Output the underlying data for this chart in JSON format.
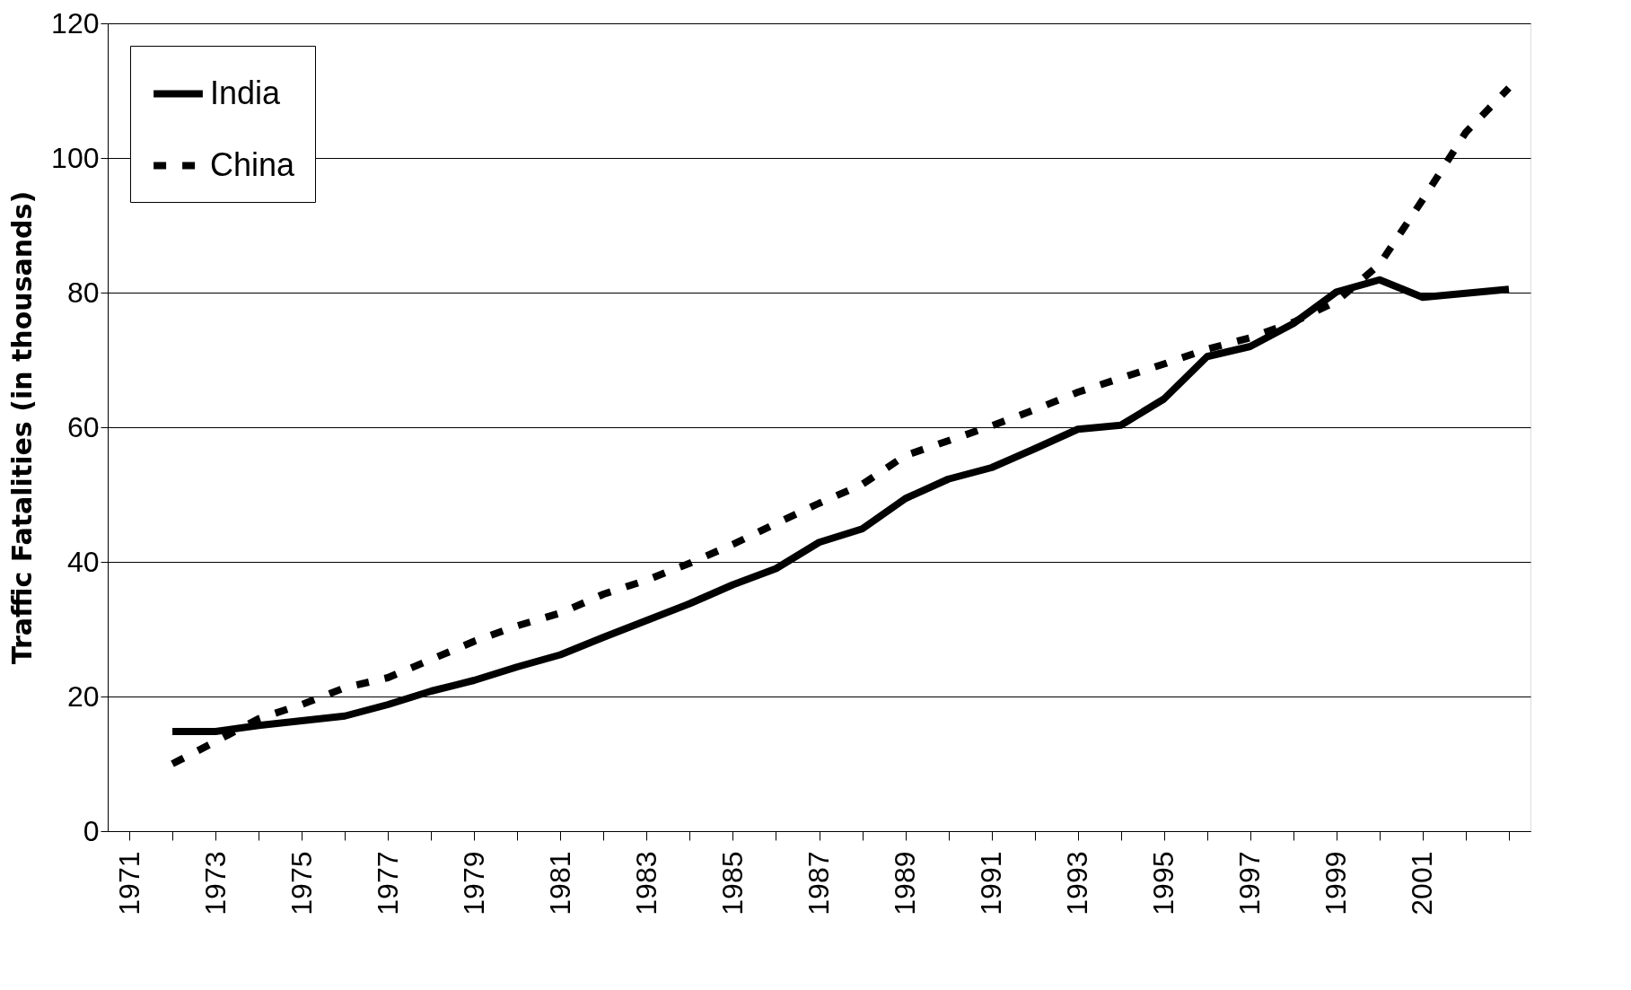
{
  "chart_data": {
    "type": "line",
    "ylabel": "Traffic Fatalities (in thousands)",
    "categories": [
      "1971",
      null,
      "1973",
      null,
      "1975",
      null,
      "1977",
      null,
      "1979",
      null,
      "1981",
      null,
      "1983",
      null,
      "1985",
      null,
      "1987",
      null,
      "1989",
      null,
      "1991",
      null,
      "1993",
      null,
      "1995",
      null,
      "1997",
      null,
      "1999",
      null,
      "2001",
      null,
      null
    ],
    "series": [
      {
        "name": "India",
        "color": "#000000",
        "line_style": "solid",
        "values": [
          null,
          14.8,
          14.8,
          15.7,
          16.4,
          17.1,
          18.8,
          20.8,
          22.4,
          24.4,
          26.2,
          28.8,
          31.3,
          33.8,
          36.6,
          39.0,
          42.9,
          44.9,
          49.4,
          52.3,
          54.0,
          56.8,
          59.7,
          60.3,
          64.2,
          70.5,
          72.0,
          75.4,
          80.1,
          81.9,
          79.3,
          79.9,
          80.5
        ]
      },
      {
        "name": "China",
        "color": "#000000",
        "line_style": "dashed",
        "values": [
          null,
          10.0,
          13.3,
          16.7,
          18.8,
          21.3,
          22.8,
          25.5,
          28.2,
          30.5,
          32.4,
          35.2,
          37.3,
          39.8,
          42.6,
          45.7,
          48.7,
          51.5,
          55.8,
          58.0,
          60.2,
          62.6,
          65.2,
          67.3,
          69.4,
          71.6,
          73.3,
          75.6,
          78.7,
          84.2,
          93.8,
          103.8,
          110.4
        ]
      }
    ],
    "ylim": [
      0,
      120
    ],
    "yticks": [
      0,
      20,
      40,
      60,
      80,
      100,
      120
    ],
    "grid": "y",
    "legend": "top left"
  }
}
